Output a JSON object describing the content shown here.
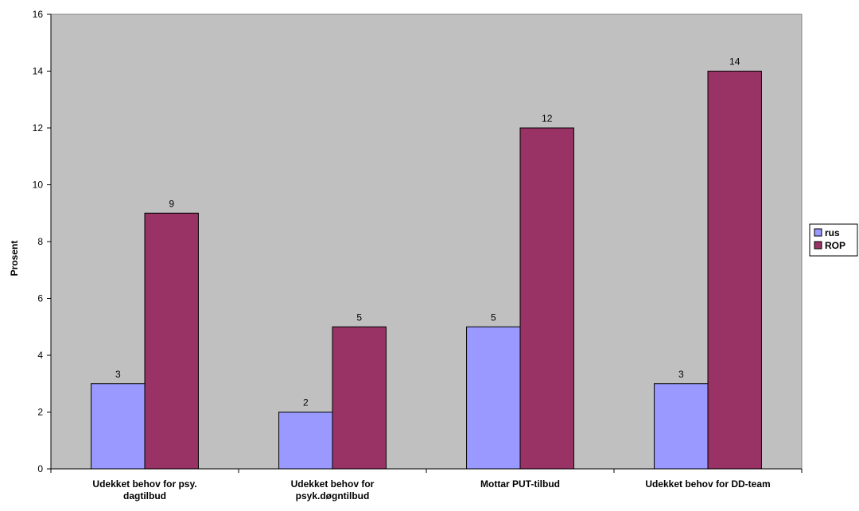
{
  "chart_data": {
    "type": "bar",
    "categories": [
      [
        "Udekket behov for psy.",
        "dagtilbud"
      ],
      [
        "Udekket behov for",
        "psyk.døgntilbud"
      ],
      [
        "Mottar PUT-tilbud"
      ],
      [
        "Udekket behov for DD-team"
      ]
    ],
    "series": [
      {
        "name": "rus",
        "values": [
          3,
          2,
          5,
          3
        ],
        "color": "#9999ff"
      },
      {
        "name": "ROP",
        "values": [
          9,
          5,
          12,
          14
        ],
        "color": "#993366"
      }
    ],
    "ylabel": "Prosent",
    "ylim": [
      0,
      16
    ],
    "yticks": [
      0,
      2,
      4,
      6,
      8,
      10,
      12,
      14,
      16
    ],
    "plot_background": "#c0c0c0",
    "grid": false,
    "legend_position": "right",
    "data_labels": true
  }
}
